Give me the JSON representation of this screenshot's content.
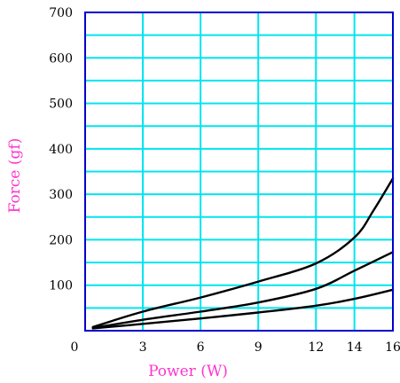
{
  "chart_data": {
    "type": "line",
    "title": "",
    "xlabel": "Power (W)",
    "ylabel": "Force (gf)",
    "xlim": [
      0,
      16
    ],
    "ylim": [
      0,
      700
    ],
    "xticks": [
      0,
      3,
      6,
      9,
      12,
      14,
      16
    ],
    "xtick_labels": [
      "0",
      "3",
      "6",
      "9",
      "12",
      "14",
      "16"
    ],
    "yticks": [
      100,
      200,
      300,
      400,
      500,
      600,
      700
    ],
    "ytick_labels": [
      "100",
      "200",
      "300",
      "400",
      "500",
      "600",
      "700"
    ],
    "grid": true,
    "legend": "none",
    "series": [
      {
        "x": [
          0.4,
          3,
          6,
          9,
          12,
          14,
          15,
          16
        ],
        "y": [
          8,
          42,
          73,
          108,
          148,
          205,
          265,
          335
        ]
      },
      {
        "x": [
          0.4,
          3,
          6,
          9,
          12,
          14,
          16
        ],
        "y": [
          6,
          24,
          42,
          62,
          92,
          132,
          173
        ]
      },
      {
        "x": [
          0.4,
          3,
          6,
          9,
          12,
          14,
          16
        ],
        "y": [
          5,
          15,
          27,
          40,
          55,
          70,
          90
        ]
      }
    ]
  },
  "colors": {
    "grid": "#00e5ee",
    "frame": "#0000cc",
    "line": "#000000",
    "axis_label": "#ff33cc"
  }
}
